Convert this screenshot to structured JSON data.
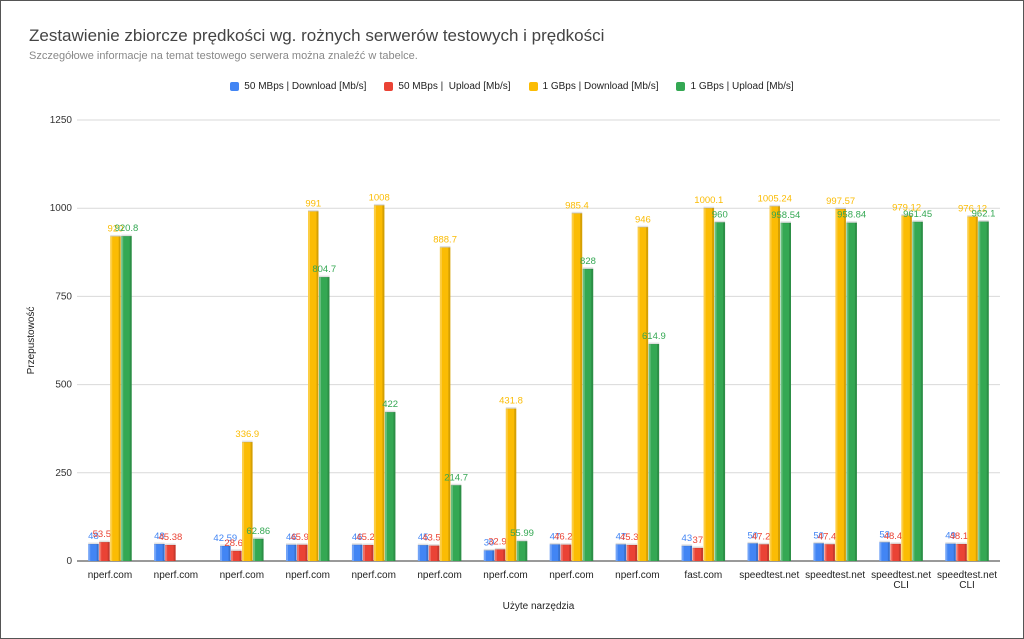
{
  "chart_data": {
    "type": "bar",
    "title": "Zestawienie zbiorcze prędkości wg. rożnych serwerów testowych i prędkości",
    "subtitle": "Szczegółowe informacje na temat testowego serwera można znaleźć w tabelce.",
    "xlabel": "Użyte narzędzia",
    "ylabel": "Przepustowość",
    "ylim": [
      0,
      1250
    ],
    "yticks": [
      "0",
      "250",
      "500",
      "750",
      "1000",
      "1250"
    ],
    "ytick_values": [
      0,
      250,
      500,
      750,
      1000,
      1250
    ],
    "categories": [
      [
        "nperf.com"
      ],
      [
        "nperf.com"
      ],
      [
        "nperf.com"
      ],
      [
        "nperf.com"
      ],
      [
        "nperf.com"
      ],
      [
        "nperf.com"
      ],
      [
        "nperf.com"
      ],
      [
        "nperf.com"
      ],
      [
        "nperf.com"
      ],
      [
        "fast.com"
      ],
      [
        "speedtest.net"
      ],
      [
        "speedtest.net"
      ],
      [
        "speedtest.net",
        "CLI"
      ],
      [
        "speedtest.net",
        "CLI"
      ]
    ],
    "series": [
      {
        "name": "50 MBps | Download [Mb/s]",
        "color": "#4285f4",
        "values": [
          48,
          48,
          42.59,
          46,
          46,
          45,
          30,
          47,
          47,
          43,
          50,
          50,
          53,
          49
        ],
        "labels": [
          "48",
          "48",
          "42.59",
          "46",
          "46",
          "45",
          "30",
          "47",
          "47",
          "43",
          "50",
          "50",
          "53",
          "49"
        ]
      },
      {
        "name": "50 MBps |  Upload [Mb/s]",
        "color": "#ea4335",
        "values": [
          53.55,
          45.38,
          28.69,
          45.99,
          45.29,
          43.56,
          32.95,
          46.28,
          45.36,
          37,
          47.28,
          47.42,
          48.49,
          48.15
        ],
        "labels": [
          "53.55",
          "45.38",
          "28.69",
          "45.99",
          "45.29",
          "43.56",
          "32.95",
          "46.28",
          "45.36",
          "37",
          "47.28",
          "47.42",
          "48.49",
          "48.15"
        ]
      },
      {
        "name": "1 GBps | Download [Mb/s]",
        "color": "#fbbc04",
        "values": [
          920,
          null,
          336.9,
          991,
          1008,
          888.7,
          431.8,
          985.4,
          946,
          1000.1,
          1005.24,
          997.57,
          979.12,
          976.12
        ],
        "labels": [
          "920",
          null,
          "336.9",
          "991",
          "1008",
          "888.7",
          "431.8",
          "985.4",
          "946",
          "1000.1",
          "1005.24",
          "997.57",
          "979.12",
          "976.12"
        ]
      },
      {
        "name": "1 GBps | Upload [Mb/s]",
        "color": "#34a853",
        "values": [
          920.8,
          null,
          62.86,
          804.7,
          422,
          214.7,
          55.99,
          828,
          614.9,
          960,
          958.54,
          958.84,
          961.45,
          962.1
        ],
        "labels": [
          "920.8",
          null,
          "62.86",
          "804.7",
          "422",
          "214.7",
          "55.99",
          "828",
          "614.9",
          "960",
          "958.54",
          "958.84",
          "961.45",
          "962.1"
        ]
      }
    ]
  }
}
